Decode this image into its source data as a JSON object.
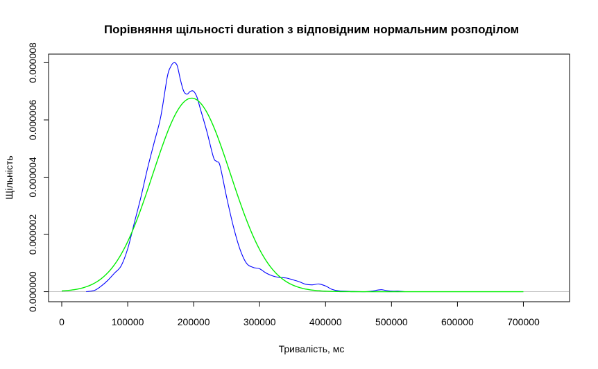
{
  "chart_data": {
    "type": "line",
    "title": "Порівняння щільності duration з відповідним нормальним розподілом",
    "xlabel": "Тривалість, мс",
    "ylabel": "Щільність",
    "xlim": [
      -20000,
      770000
    ],
    "ylim": [
      -3.5e-07,
      8.3e-06
    ],
    "x_ticks": [
      0,
      100000,
      200000,
      300000,
      400000,
      500000,
      600000,
      700000
    ],
    "x_tick_labels": [
      "0",
      "100000",
      "200000",
      "300000",
      "400000",
      "500000",
      "600000",
      "700000"
    ],
    "y_ticks": [
      0,
      2e-06,
      4e-06,
      6e-06,
      8e-06
    ],
    "y_tick_labels": [
      "0.000000",
      "0.000002",
      "0.000004",
      "0.000006",
      "0.000008"
    ],
    "grid": false,
    "reference_line": {
      "y": 0,
      "color": "#bebebe"
    },
    "series": [
      {
        "color": "#0000ff",
        "x": [
          37000,
          50000,
          60000,
          70000,
          80000,
          90000,
          100000,
          110000,
          120000,
          130000,
          140000,
          150000,
          160000,
          165000,
          170000,
          175000,
          180000,
          185000,
          190000,
          195000,
          200000,
          205000,
          210000,
          220000,
          230000,
          235000,
          240000,
          250000,
          260000,
          270000,
          280000,
          290000,
          300000,
          310000,
          320000,
          330000,
          340000,
          350000,
          360000,
          370000,
          380000,
          390000,
          400000,
          410000,
          420000,
          440000,
          460000,
          470000,
          480000,
          485000,
          490000,
          500000,
          510000,
          520000
        ],
        "y": [
          0,
          5e-08,
          2e-07,
          4e-07,
          6.5e-07,
          9e-07,
          1.5e-06,
          2.4e-06,
          3.3e-06,
          4.3e-06,
          5.2e-06,
          6.1e-06,
          7.5e-06,
          7.85e-06,
          8e-06,
          7.9e-06,
          7.4e-06,
          7e-06,
          6.9e-06,
          7e-06,
          7e-06,
          6.8e-06,
          6.4e-06,
          5.6e-06,
          4.7e-06,
          4.55e-06,
          4.4e-06,
          3.3e-06,
          2.3e-06,
          1.5e-06,
          1e-06,
          8.5e-07,
          8e-07,
          6.5e-07,
          5.5e-07,
          5e-07,
          4.8e-07,
          4.2e-07,
          3.5e-07,
          2.6e-07,
          2.4e-07,
          2.7e-07,
          2e-07,
          8e-08,
          3e-08,
          1e-08,
          0,
          2e-08,
          6e-08,
          7e-08,
          5e-08,
          2e-08,
          2e-08,
          0
        ]
      },
      {
        "color": "#00ee00",
        "distribution": "normal",
        "mean": 197000,
        "sd": 59000,
        "x_range": [
          0,
          700000
        ]
      }
    ]
  }
}
